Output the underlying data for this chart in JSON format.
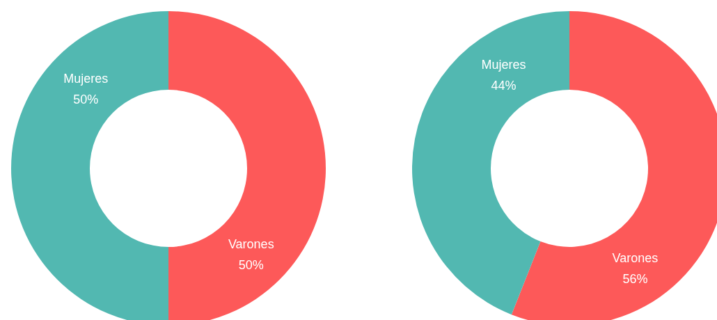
{
  "chart_data": [
    {
      "type": "donut",
      "categories": [
        "Varones",
        "Mujeres"
      ],
      "values": [
        50,
        50
      ],
      "colors": [
        "#fd5959",
        "#52b8b1"
      ],
      "value_labels": [
        "50%",
        "50%"
      ]
    },
    {
      "type": "donut",
      "categories": [
        "Varones",
        "Mujeres"
      ],
      "values": [
        56,
        44
      ],
      "colors": [
        "#fd5959",
        "#52b8b1"
      ],
      "value_labels": [
        "56%",
        "44%"
      ]
    }
  ]
}
